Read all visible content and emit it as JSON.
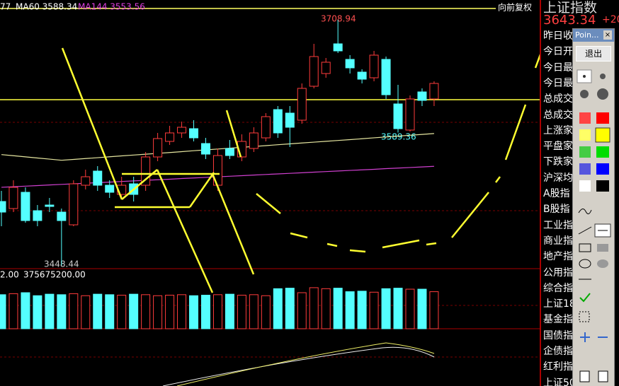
{
  "chart_data": {
    "type": "candlestick",
    "legend": {
      "cut": "77",
      "ma60": "MA60 3588.34",
      "ma144": "MA144 3553.56",
      "adjust": "向前复权"
    },
    "ylim": [
      3448,
      3730
    ],
    "labels": {
      "high": "3708.94",
      "low": "3448.44",
      "recent_low": "3589.36"
    },
    "open": [
      3516.25,
      3508.75,
      3526,
      3506.5,
      3512.5,
      3505,
      3491.5,
      3533.5,
      3548.5,
      3533.5,
      3523.75,
      3535,
      3533.5,
      3563.5,
      3580,
      3589,
      3593.5,
      3577.75,
      3533.5,
      3572.5,
      3563.5,
      3572.5,
      3583.75,
      3613.75,
      3610,
      3602.5,
      3638.5,
      3652,
      3683.5,
      3667,
      3653.5,
      3647.5,
      3667,
      3619.75,
      3592,
      3632.5,
      3625
    ],
    "high": [
      3527.5,
      3538.75,
      3531.25,
      3512.5,
      3520,
      3508.75,
      3538.75,
      3550,
      3553.75,
      3538.75,
      3542.5,
      3542.5,
      3568.75,
      3589,
      3596.5,
      3601,
      3602.5,
      3583.75,
      3572.5,
      3581.5,
      3587.5,
      3595,
      3610,
      3617.5,
      3617.5,
      3641.5,
      3683.5,
      3668.5,
      3708.94,
      3671.5,
      3656.5,
      3676,
      3670,
      3640,
      3628.75,
      3636.25,
      3643.75
    ],
    "low": [
      3490,
      3505,
      3493.75,
      3490,
      3505,
      3448.44,
      3490,
      3529,
      3527.5,
      3520,
      3518.5,
      3516.25,
      3527.5,
      3559,
      3576.25,
      3583.75,
      3580,
      3561.25,
      3527.5,
      3561.25,
      3559,
      3568.75,
      3580,
      3583.75,
      3574,
      3598.75,
      3636.25,
      3647.5,
      3673.75,
      3652,
      3641.5,
      3643.75,
      3625,
      3589.36,
      3590.5,
      3617.5,
      3617.5
    ],
    "close": [
      3505,
      3531.25,
      3496,
      3496,
      3511,
      3496,
      3535,
      3542.5,
      3533.5,
      3526,
      3533.5,
      3523.75,
      3563.5,
      3583,
      3589,
      3595,
      3583.75,
      3566.5,
      3565,
      3565,
      3580,
      3589,
      3606.25,
      3589,
      3595,
      3636.25,
      3670,
      3664,
      3676,
      3658,
      3646,
      3671.5,
      3629.5,
      3593.5,
      3625,
      3623.5,
      3641.5
    ],
    "up_color": "#ff3c3c",
    "down_color": "#54ffff",
    "lines": [
      {
        "name": "MA60",
        "color": "#e6e6a0",
        "values": [
          3566,
          3564.8,
          3563.6,
          3562.4,
          3561.2,
          3560,
          3560.9,
          3561.8,
          3562.7,
          3563.7,
          3564.6,
          3565.5,
          3566.4,
          3567.3,
          3568.2,
          3569.1,
          3570.1,
          3571,
          3571.9,
          3572.8,
          3573.7,
          3574.6,
          3575.5,
          3576.5,
          3577.4,
          3578.3,
          3579.2,
          3580.1,
          3581,
          3581.9,
          3582.8,
          3583.8,
          3584.7,
          3585.6,
          3586.5,
          3587.4,
          3588.34
        ]
      },
      {
        "name": "MA144",
        "color": "#d040d0",
        "values": [
          3531.3,
          3531.9,
          3532.5,
          3533.1,
          3533.8,
          3534.4,
          3535,
          3535.6,
          3536.2,
          3536.8,
          3537.5,
          3538.1,
          3538.7,
          3539.3,
          3539.9,
          3540.6,
          3541.2,
          3541.8,
          3542.4,
          3543,
          3543.6,
          3544.3,
          3544.9,
          3545.5,
          3546.1,
          3546.7,
          3547.4,
          3548,
          3548.6,
          3549.2,
          3549.8,
          3550.4,
          3551.1,
          3551.7,
          3552.3,
          3552.9,
          3553.56
        ]
      }
    ],
    "hline": 3624.25,
    "volume_labels": {
      "cut": "2.00",
      "mavol": "375675200.00"
    },
    "vol_lim": [
      0,
      600000000
    ],
    "volume": [
      340000000,
      350000000,
      360000000,
      330000000,
      345000000,
      340000000,
      350000000,
      330000000,
      345000000,
      340000000,
      335000000,
      345000000,
      340000000,
      330000000,
      335000000,
      340000000,
      330000000,
      335000000,
      340000000,
      345000000,
      335000000,
      340000000,
      330000000,
      400000000,
      405000000,
      360000000,
      410000000,
      400000000,
      405000000,
      370000000,
      375000000,
      365000000,
      400000000,
      405000000,
      395000000,
      395000000,
      370000000
    ]
  },
  "sidebar": {
    "title": "上证指数",
    "price": "3643.34",
    "change": "+20",
    "rows": [
      "昨日收",
      "今日开",
      "今日最",
      "今日最",
      "总成交",
      "总成交",
      "上涨家",
      "平盘家",
      "下跌家",
      "沪深均",
      "A股指",
      "B股指",
      "工业指",
      "商业指",
      "地产指",
      "公用指",
      "综合指",
      "上证18",
      "基金指",
      "国债指",
      "企债指",
      "红利指",
      "上证50"
    ]
  },
  "toolbar": {
    "title": "Poin...",
    "close": "×",
    "exit": "退出"
  }
}
